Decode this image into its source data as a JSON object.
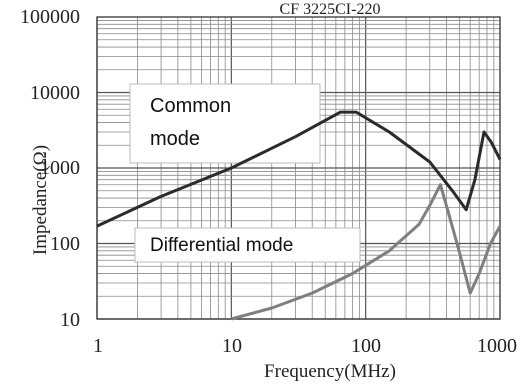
{
  "chart_data": {
    "type": "line",
    "title": "CF 3225CI-220",
    "xlabel": "Frequency(MHz)",
    "ylabel": "Impedance(Ω)",
    "x_scale": "log",
    "y_scale": "log",
    "xlim": [
      1,
      1000
    ],
    "ylim": [
      10,
      100000
    ],
    "x_ticks": [
      "1",
      "10",
      "100",
      "1000"
    ],
    "y_ticks": [
      "100000",
      "10000",
      "1000",
      "100",
      "10"
    ],
    "grid": true,
    "annotations": [
      "Common mode",
      "Differential mode"
    ],
    "series": [
      {
        "name": "Common mode",
        "color": "#2b2b2b",
        "points": [
          [
            1,
            170
          ],
          [
            3,
            420
          ],
          [
            10,
            1000
          ],
          [
            30,
            2600
          ],
          [
            65,
            5500
          ],
          [
            85,
            5500
          ],
          [
            150,
            3000
          ],
          [
            300,
            1200
          ],
          [
            450,
            480
          ],
          [
            560,
            280
          ],
          [
            650,
            700
          ],
          [
            760,
            3000
          ],
          [
            860,
            2200
          ],
          [
            1000,
            1300
          ]
        ]
      },
      {
        "name": "Differential mode",
        "color": "#7f7f7f",
        "points": [
          [
            10,
            10
          ],
          [
            20,
            14
          ],
          [
            40,
            22
          ],
          [
            80,
            40
          ],
          [
            150,
            80
          ],
          [
            250,
            180
          ],
          [
            300,
            320
          ],
          [
            360,
            600
          ],
          [
            420,
            230
          ],
          [
            500,
            75
          ],
          [
            600,
            22
          ],
          [
            700,
            40
          ],
          [
            850,
            100
          ],
          [
            1000,
            170
          ]
        ]
      }
    ]
  }
}
